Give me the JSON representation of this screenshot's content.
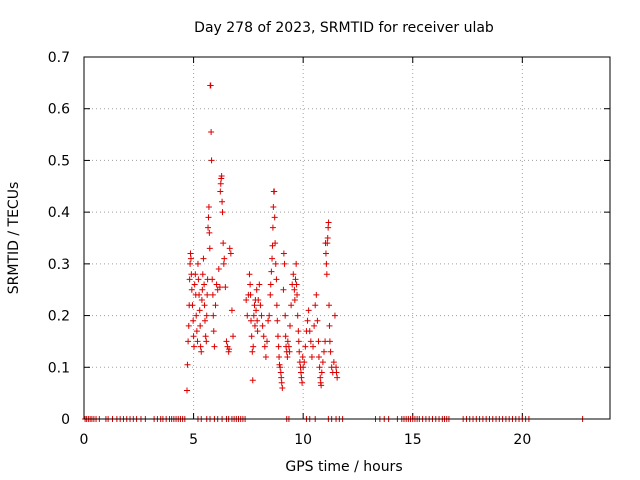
{
  "chart_data": {
    "type": "scatter",
    "title": "Day 278 of 2023, SRMTID for receiver ulab",
    "xlabel": "GPS time / hours",
    "ylabel": "SRMTID / TECUs",
    "xlim": [
      0,
      24
    ],
    "ylim": [
      0,
      0.7
    ],
    "xticks": [
      0,
      5,
      10,
      15,
      20
    ],
    "xtick_labels": [
      "0",
      "5",
      "10",
      "15",
      "20"
    ],
    "yticks": [
      0,
      0.1,
      0.2,
      0.3,
      0.4,
      0.5,
      0.6,
      0.7
    ],
    "ytick_labels": [
      "0",
      "0.1",
      "0.2",
      "0.3",
      "0.4",
      "0.5",
      "0.6",
      "0.7"
    ],
    "grid": true,
    "marker": "+",
    "color": "#dd0000",
    "series": [
      {
        "name": "SRMTID",
        "points": [
          [
            0.05,
            0
          ],
          [
            0.12,
            0
          ],
          [
            0.2,
            0
          ],
          [
            0.28,
            0
          ],
          [
            0.36,
            0
          ],
          [
            0.45,
            0
          ],
          [
            0.55,
            0
          ],
          [
            0.7,
            0
          ],
          [
            1.0,
            0
          ],
          [
            1.1,
            0
          ],
          [
            1.3,
            0
          ],
          [
            1.5,
            0
          ],
          [
            1.65,
            0
          ],
          [
            1.8,
            0
          ],
          [
            1.95,
            0
          ],
          [
            2.1,
            0
          ],
          [
            2.25,
            0
          ],
          [
            2.4,
            0
          ],
          [
            2.6,
            0
          ],
          [
            2.8,
            0
          ],
          [
            3.2,
            0
          ],
          [
            3.35,
            0
          ],
          [
            3.5,
            0
          ],
          [
            3.6,
            0
          ],
          [
            3.75,
            0
          ],
          [
            3.9,
            0
          ],
          [
            4.0,
            0
          ],
          [
            4.1,
            0
          ],
          [
            4.2,
            0
          ],
          [
            4.3,
            0
          ],
          [
            4.4,
            0
          ],
          [
            4.5,
            0
          ],
          [
            4.6,
            0
          ],
          [
            5.2,
            0
          ],
          [
            5.35,
            0
          ],
          [
            5.6,
            0
          ],
          [
            5.75,
            0
          ],
          [
            5.95,
            0
          ],
          [
            6.1,
            0
          ],
          [
            6.3,
            0
          ],
          [
            6.5,
            0
          ],
          [
            6.6,
            0
          ],
          [
            6.75,
            0
          ],
          [
            6.85,
            0
          ],
          [
            6.95,
            0
          ],
          [
            7.05,
            0
          ],
          [
            7.15,
            0
          ],
          [
            7.25,
            0
          ],
          [
            7.35,
            0
          ],
          [
            9.25,
            0
          ],
          [
            9.35,
            0
          ],
          [
            10.15,
            0
          ],
          [
            10.3,
            0
          ],
          [
            10.55,
            0
          ],
          [
            11.15,
            0
          ],
          [
            11.3,
            0
          ],
          [
            11.5,
            0
          ],
          [
            11.65,
            0
          ],
          [
            11.8,
            0
          ],
          [
            13.3,
            0
          ],
          [
            13.5,
            0
          ],
          [
            13.7,
            0
          ],
          [
            13.9,
            0
          ],
          [
            14.3,
            0
          ],
          [
            14.5,
            0
          ],
          [
            14.6,
            0
          ],
          [
            14.7,
            0
          ],
          [
            14.8,
            0
          ],
          [
            14.9,
            0
          ],
          [
            15.0,
            0
          ],
          [
            15.1,
            0
          ],
          [
            15.2,
            0
          ],
          [
            15.3,
            0
          ],
          [
            15.45,
            0
          ],
          [
            15.6,
            0
          ],
          [
            15.75,
            0
          ],
          [
            15.9,
            0
          ],
          [
            16.05,
            0
          ],
          [
            16.2,
            0
          ],
          [
            16.35,
            0
          ],
          [
            16.45,
            0
          ],
          [
            16.55,
            0
          ],
          [
            16.65,
            0
          ],
          [
            17.3,
            0
          ],
          [
            17.45,
            0
          ],
          [
            17.6,
            0
          ],
          [
            17.75,
            0
          ],
          [
            17.9,
            0
          ],
          [
            18.05,
            0
          ],
          [
            18.2,
            0
          ],
          [
            18.35,
            0
          ],
          [
            18.5,
            0
          ],
          [
            18.65,
            0
          ],
          [
            18.8,
            0
          ],
          [
            18.95,
            0
          ],
          [
            19.1,
            0
          ],
          [
            19.25,
            0
          ],
          [
            19.4,
            0
          ],
          [
            19.55,
            0
          ],
          [
            19.7,
            0
          ],
          [
            19.85,
            0
          ],
          [
            20.0,
            0
          ],
          [
            20.15,
            0
          ],
          [
            20.3,
            0
          ],
          [
            22.75,
            0
          ],
          [
            4.7,
            0.055
          ],
          [
            4.72,
            0.105
          ],
          [
            4.75,
            0.15
          ],
          [
            4.78,
            0.18
          ],
          [
            4.8,
            0.22
          ],
          [
            4.82,
            0.27
          ],
          [
            4.84,
            0.3
          ],
          [
            4.86,
            0.32
          ],
          [
            4.88,
            0.31
          ],
          [
            4.9,
            0.28
          ],
          [
            4.92,
            0.25
          ],
          [
            4.95,
            0.22
          ],
          [
            4.98,
            0.19
          ],
          [
            5.0,
            0.16
          ],
          [
            5.02,
            0.14
          ],
          [
            5.05,
            0.26
          ],
          [
            5.08,
            0.28
          ],
          [
            5.1,
            0.24
          ],
          [
            5.12,
            0.2
          ],
          [
            5.15,
            0.17
          ],
          [
            5.18,
            0.15
          ],
          [
            5.2,
            0.3
          ],
          [
            5.22,
            0.27
          ],
          [
            5.25,
            0.24
          ],
          [
            5.28,
            0.21
          ],
          [
            5.3,
            0.18
          ],
          [
            5.32,
            0.14
          ],
          [
            5.35,
            0.13
          ],
          [
            5.38,
            0.23
          ],
          [
            5.4,
            0.25
          ],
          [
            5.42,
            0.28
          ],
          [
            5.45,
            0.31
          ],
          [
            5.48,
            0.26
          ],
          [
            5.5,
            0.22
          ],
          [
            5.52,
            0.19
          ],
          [
            5.55,
            0.16
          ],
          [
            5.58,
            0.15
          ],
          [
            5.6,
            0.2
          ],
          [
            5.62,
            0.24
          ],
          [
            5.64,
            0.27
          ],
          [
            5.66,
            0.37
          ],
          [
            5.68,
            0.39
          ],
          [
            5.7,
            0.41
          ],
          [
            5.72,
            0.36
          ],
          [
            5.74,
            0.33
          ],
          [
            5.76,
            0.645
          ],
          [
            5.78,
            0.645
          ],
          [
            5.8,
            0.555
          ],
          [
            5.82,
            0.5
          ],
          [
            5.85,
            0.27
          ],
          [
            5.88,
            0.24
          ],
          [
            5.9,
            0.2
          ],
          [
            5.92,
            0.17
          ],
          [
            5.95,
            0.14
          ],
          [
            6.0,
            0.22
          ],
          [
            6.05,
            0.26
          ],
          [
            6.1,
            0.25
          ],
          [
            6.15,
            0.29
          ],
          [
            6.2,
            0.255
          ],
          [
            6.22,
            0.44
          ],
          [
            6.24,
            0.455
          ],
          [
            6.26,
            0.465
          ],
          [
            6.28,
            0.47
          ],
          [
            6.3,
            0.42
          ],
          [
            6.32,
            0.4
          ],
          [
            6.35,
            0.34
          ],
          [
            6.38,
            0.3
          ],
          [
            6.4,
            0.31
          ],
          [
            6.45,
            0.255
          ],
          [
            6.5,
            0.15
          ],
          [
            6.55,
            0.14
          ],
          [
            6.6,
            0.13
          ],
          [
            6.62,
            0.135
          ],
          [
            6.65,
            0.33
          ],
          [
            6.7,
            0.32
          ],
          [
            6.75,
            0.21
          ],
          [
            6.8,
            0.16
          ],
          [
            7.4,
            0.23
          ],
          [
            7.45,
            0.2
          ],
          [
            7.5,
            0.24
          ],
          [
            7.55,
            0.28
          ],
          [
            7.58,
            0.26
          ],
          [
            7.6,
            0.24
          ],
          [
            7.62,
            0.19
          ],
          [
            7.65,
            0.16
          ],
          [
            7.68,
            0.13
          ],
          [
            7.7,
            0.075
          ],
          [
            7.72,
            0.14
          ],
          [
            7.75,
            0.2
          ],
          [
            7.78,
            0.22
          ],
          [
            7.8,
            0.18
          ],
          [
            7.82,
            0.23
          ],
          [
            7.85,
            0.21
          ],
          [
            7.88,
            0.25
          ],
          [
            7.9,
            0.19
          ],
          [
            7.92,
            0.17
          ],
          [
            7.95,
            0.23
          ],
          [
            8.0,
            0.26
          ],
          [
            8.05,
            0.22
          ],
          [
            8.1,
            0.2
          ],
          [
            8.15,
            0.18
          ],
          [
            8.2,
            0.16
          ],
          [
            8.25,
            0.14
          ],
          [
            8.3,
            0.12
          ],
          [
            8.35,
            0.15
          ],
          [
            8.4,
            0.19
          ],
          [
            8.45,
            0.2
          ],
          [
            8.5,
            0.24
          ],
          [
            8.52,
            0.26
          ],
          [
            8.55,
            0.285
          ],
          [
            8.58,
            0.31
          ],
          [
            8.6,
            0.335
          ],
          [
            8.62,
            0.37
          ],
          [
            8.64,
            0.41
          ],
          [
            8.66,
            0.44
          ],
          [
            8.68,
            0.44
          ],
          [
            8.7,
            0.39
          ],
          [
            8.72,
            0.34
          ],
          [
            8.75,
            0.3
          ],
          [
            8.78,
            0.27
          ],
          [
            8.8,
            0.22
          ],
          [
            8.82,
            0.19
          ],
          [
            8.85,
            0.16
          ],
          [
            8.88,
            0.14
          ],
          [
            8.9,
            0.12
          ],
          [
            8.92,
            0.105
          ],
          [
            8.95,
            0.1
          ],
          [
            8.98,
            0.09
          ],
          [
            9.0,
            0.08
          ],
          [
            9.02,
            0.07
          ],
          [
            9.05,
            0.06
          ],
          [
            9.1,
            0.25
          ],
          [
            9.12,
            0.32
          ],
          [
            9.15,
            0.3
          ],
          [
            9.18,
            0.2
          ],
          [
            9.2,
            0.16
          ],
          [
            9.22,
            0.14
          ],
          [
            9.25,
            0.13
          ],
          [
            9.28,
            0.12
          ],
          [
            9.3,
            0.15
          ],
          [
            9.35,
            0.14
          ],
          [
            9.38,
            0.13
          ],
          [
            9.4,
            0.18
          ],
          [
            9.45,
            0.22
          ],
          [
            9.5,
            0.26
          ],
          [
            9.55,
            0.28
          ],
          [
            9.6,
            0.25
          ],
          [
            9.62,
            0.23
          ],
          [
            9.65,
            0.27
          ],
          [
            9.68,
            0.3
          ],
          [
            9.7,
            0.26
          ],
          [
            9.72,
            0.24
          ],
          [
            9.75,
            0.2
          ],
          [
            9.78,
            0.17
          ],
          [
            9.8,
            0.15
          ],
          [
            9.82,
            0.13
          ],
          [
            9.85,
            0.11
          ],
          [
            9.88,
            0.1
          ],
          [
            9.9,
            0.09
          ],
          [
            9.92,
            0.08
          ],
          [
            9.95,
            0.07
          ],
          [
            9.98,
            0.12
          ],
          [
            10.0,
            0.1
          ],
          [
            10.05,
            0.11
          ],
          [
            10.1,
            0.14
          ],
          [
            10.15,
            0.17
          ],
          [
            10.2,
            0.19
          ],
          [
            10.25,
            0.21
          ],
          [
            10.3,
            0.17
          ],
          [
            10.35,
            0.15
          ],
          [
            10.4,
            0.12
          ],
          [
            10.45,
            0.14
          ],
          [
            10.5,
            0.18
          ],
          [
            10.55,
            0.22
          ],
          [
            10.6,
            0.24
          ],
          [
            10.65,
            0.19
          ],
          [
            10.7,
            0.15
          ],
          [
            10.72,
            0.12
          ],
          [
            10.75,
            0.1
          ],
          [
            10.78,
            0.08
          ],
          [
            10.8,
            0.07
          ],
          [
            10.82,
            0.065
          ],
          [
            10.85,
            0.09
          ],
          [
            10.9,
            0.11
          ],
          [
            10.95,
            0.13
          ],
          [
            11.0,
            0.15
          ],
          [
            11.02,
            0.34
          ],
          [
            11.04,
            0.32
          ],
          [
            11.06,
            0.3
          ],
          [
            11.08,
            0.28
          ],
          [
            11.1,
            0.34
          ],
          [
            11.12,
            0.35
          ],
          [
            11.14,
            0.37
          ],
          [
            11.16,
            0.38
          ],
          [
            11.18,
            0.22
          ],
          [
            11.2,
            0.18
          ],
          [
            11.22,
            0.15
          ],
          [
            11.25,
            0.13
          ],
          [
            11.3,
            0.1
          ],
          [
            11.35,
            0.09
          ],
          [
            11.4,
            0.11
          ],
          [
            11.45,
            0.2
          ],
          [
            11.5,
            0.1
          ],
          [
            11.52,
            0.09
          ],
          [
            11.55,
            0.08
          ]
        ]
      }
    ]
  }
}
